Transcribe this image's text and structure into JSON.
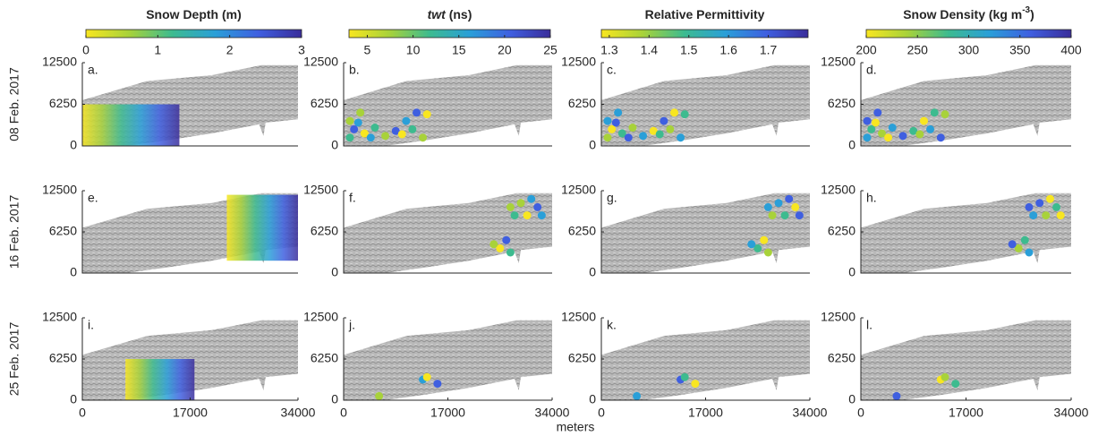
{
  "figure": {
    "colorbars": [
      {
        "title_parts": [
          {
            "text": "Snow Depth (m)"
          }
        ],
        "range": [
          0,
          3
        ],
        "ticks": [
          0,
          1,
          2,
          3
        ]
      },
      {
        "title_parts": [
          {
            "text": "twt",
            "style": "italic"
          },
          {
            "text": " (ns)"
          }
        ],
        "range": [
          3,
          25
        ],
        "ticks": [
          5,
          10,
          15,
          20,
          25
        ]
      },
      {
        "title_parts": [
          {
            "text": "Relative Permittivity"
          }
        ],
        "range": [
          1.28,
          1.8
        ],
        "ticks": [
          1.3,
          1.4,
          1.5,
          1.6,
          1.7
        ]
      },
      {
        "title_parts": [
          {
            "text": "Snow Density (kg m"
          },
          {
            "text": "-3",
            "style": "super"
          },
          {
            "text": ")"
          }
        ],
        "range": [
          200,
          400
        ],
        "ticks": [
          200,
          250,
          300,
          350,
          400
        ]
      }
    ],
    "colormap": [
      "#f8e621",
      "#a8d23a",
      "#3dbb8f",
      "#2a9fd8",
      "#3f5fe0",
      "#3a2d9a"
    ],
    "row_labels": [
      "08 Feb. 2017",
      "16 Feb. 2017",
      "25 Feb. 2017"
    ],
    "panel_letters": [
      [
        "a.",
        "b.",
        "c.",
        "d."
      ],
      [
        "e.",
        "f.",
        "g.",
        "h."
      ],
      [
        "i.",
        "j.",
        "k.",
        "l."
      ]
    ],
    "xlim": [
      0,
      34000
    ],
    "xticks": [
      0,
      17000,
      34000
    ],
    "ylim": [
      0,
      12500
    ],
    "yticks": [
      0,
      6250,
      12500
    ],
    "xlabel": "meters"
  }
}
